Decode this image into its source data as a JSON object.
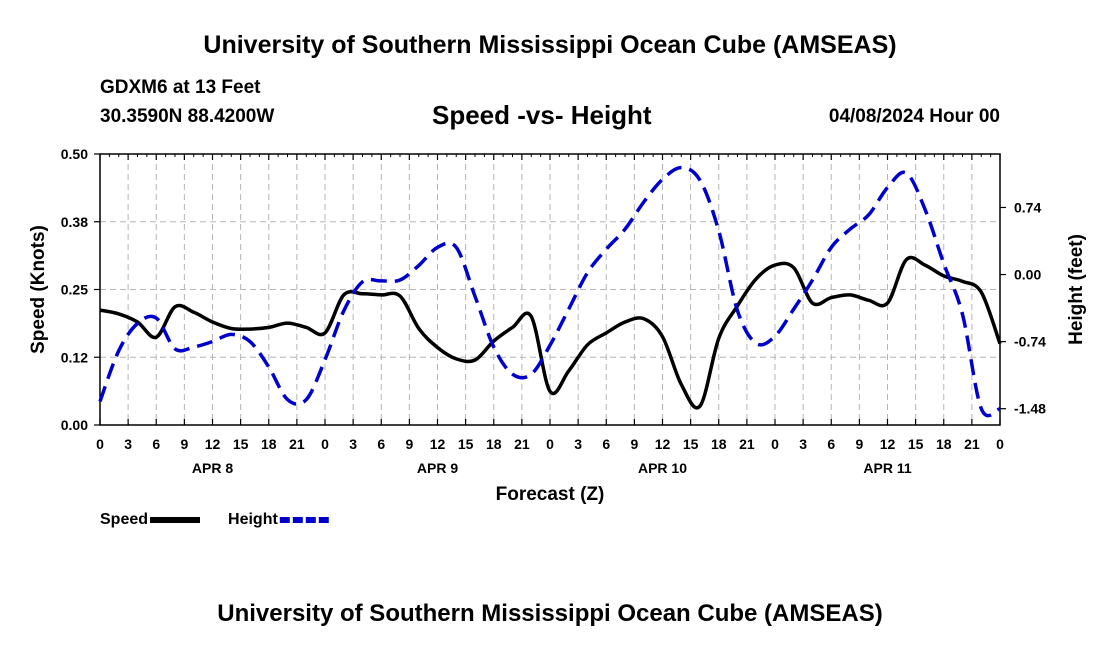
{
  "page": {
    "title_top": "University of Southern Mississippi Ocean Cube (AMSEAS)",
    "title_bottom": "University of Southern Mississippi Ocean Cube (AMSEAS)",
    "station": "GDXM6 at 13 Feet",
    "coords": "30.3590N  88.4200W",
    "date": "04/08/2024 Hour 00"
  },
  "chart_data": {
    "type": "line",
    "title": "Speed -vs- Height",
    "xlabel": "Forecast (Z)",
    "ylabel_left": "Speed (Knots)",
    "ylabel_right": "Height (feet)",
    "x_range_hours": [
      0,
      96
    ],
    "ylim_left": [
      0,
      0.5
    ],
    "ylim_right": [
      -1.66,
      1.33
    ],
    "left_ticks": [
      "0.00",
      "0.12",
      "0.25",
      "0.38",
      "0.50"
    ],
    "left_tick_values": [
      0,
      0.125,
      0.25,
      0.375,
      0.5
    ],
    "right_ticks": [
      "-1.48",
      "-0.74",
      "0.00",
      "0.74"
    ],
    "right_tick_values": [
      -1.48,
      -0.74,
      0,
      0.74
    ],
    "x_tick_labels": [
      "0",
      "3",
      "6",
      "9",
      "12",
      "15",
      "18",
      "21",
      "0",
      "3",
      "6",
      "9",
      "12",
      "15",
      "18",
      "21",
      "0",
      "3",
      "6",
      "9",
      "12",
      "15",
      "18",
      "21",
      "0",
      "3",
      "6",
      "9",
      "12",
      "15",
      "18",
      "21",
      "0"
    ],
    "day_labels": [
      {
        "label": "APR 8",
        "hour": 12
      },
      {
        "label": "APR 9",
        "hour": 36
      },
      {
        "label": "APR 10",
        "hour": 60
      },
      {
        "label": "APR 11",
        "hour": 84
      }
    ],
    "series": [
      {
        "name": "Speed",
        "color": "#000000",
        "dash": "solid",
        "axis": "left",
        "x": [
          0,
          2,
          4,
          6,
          8,
          10,
          12,
          14,
          16,
          18,
          20,
          22,
          24,
          26,
          28,
          30,
          32,
          34,
          36,
          38,
          40,
          42,
          44,
          46,
          48,
          50,
          52,
          54,
          56,
          58,
          60,
          62,
          64,
          66,
          68,
          70,
          72,
          74,
          76,
          78,
          80,
          82,
          84,
          86,
          88,
          90,
          92,
          94,
          96
        ],
        "values": [
          0.212,
          0.205,
          0.19,
          0.162,
          0.218,
          0.208,
          0.19,
          0.178,
          0.177,
          0.18,
          0.188,
          0.18,
          0.17,
          0.24,
          0.242,
          0.24,
          0.238,
          0.178,
          0.143,
          0.122,
          0.12,
          0.155,
          0.18,
          0.2,
          0.062,
          0.1,
          0.148,
          0.17,
          0.19,
          0.196,
          0.163,
          0.075,
          0.035,
          0.16,
          0.22,
          0.27,
          0.295,
          0.29,
          0.225,
          0.235,
          0.24,
          0.23,
          0.225,
          0.305,
          0.295,
          0.275,
          0.265,
          0.245,
          0.15
        ]
      },
      {
        "name": "Height",
        "color": "#0000cc",
        "dash": "dashed",
        "axis": "right",
        "x": [
          0,
          2,
          4,
          6,
          8,
          10,
          12,
          14,
          16,
          18,
          20,
          22,
          24,
          26,
          28,
          30,
          32,
          34,
          36,
          38,
          40,
          42,
          44,
          46,
          48,
          50,
          52,
          54,
          56,
          58,
          60,
          62,
          64,
          66,
          68,
          70,
          72,
          74,
          76,
          78,
          80,
          82,
          84,
          86,
          88,
          90,
          92,
          94,
          96
        ],
        "values": [
          -1.4,
          -0.84,
          -0.54,
          -0.48,
          -0.82,
          -0.8,
          -0.74,
          -0.66,
          -0.74,
          -1.02,
          -1.38,
          -1.38,
          -0.94,
          -0.4,
          -0.08,
          -0.07,
          -0.06,
          0.1,
          0.3,
          0.3,
          -0.24,
          -0.8,
          -1.1,
          -1.1,
          -0.78,
          -0.38,
          0.02,
          0.28,
          0.5,
          0.8,
          1.05,
          1.18,
          1.04,
          0.48,
          -0.4,
          -0.76,
          -0.68,
          -0.38,
          -0.06,
          0.3,
          0.5,
          0.66,
          0.96,
          1.12,
          0.72,
          0.12,
          -0.44,
          -1.48,
          -1.48
        ]
      }
    ],
    "legend": [
      {
        "label": "Speed",
        "color": "#000000",
        "dash": "solid"
      },
      {
        "label": "Height",
        "color": "#0000cc",
        "dash": "dashed"
      }
    ]
  }
}
